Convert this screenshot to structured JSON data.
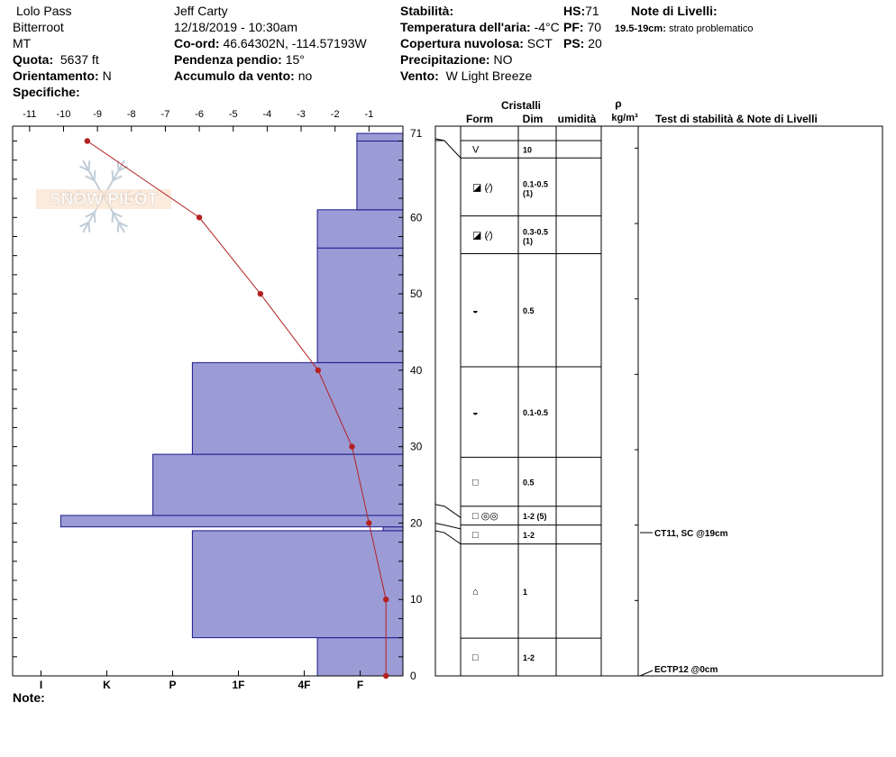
{
  "header": {
    "location": "Lolo Pass",
    "range": "Bitterroot",
    "state": "MT",
    "elevation_label": "Quota:",
    "elevation_value": "5637 ft",
    "aspect_label": "Orientamento:",
    "aspect_value": "N",
    "specifics_label": "Specifiche:",
    "observer": "Jeff Carty",
    "datetime": "12/18/2019 - 10:30am",
    "coords_label": "Co-ord:",
    "coords_value": "46.64302N, -114.57193W",
    "slope_label": "Pendenza pendio:",
    "slope_value": "15°",
    "wind_loading_label": "Accumulo da vento:",
    "wind_loading_value": "no",
    "stability_label": "Stabilità:",
    "air_temp_label": "Temperatura dell'aria:",
    "air_temp_value": "-4°C",
    "cloud_label": "Copertura nuvolosa:",
    "cloud_value": "SCT",
    "precip_label": "Precipitazione:",
    "precip_value": "NO",
    "wind_label": "Vento:",
    "wind_value": "W Light Breeze",
    "hs_label": "HS:",
    "hs_value": "71",
    "pf_label": "PF:",
    "pf_value": "70",
    "ps_label": "PS:",
    "ps_value": "20",
    "layer_notes_label": "Note di Livelli:",
    "layer_note_range": "19.5-19cm:",
    "layer_note_text": "strato problematico"
  },
  "logo_text": "SNOW PILOT",
  "note_label": "Note:",
  "chart_data": {
    "type": "line",
    "temp_axis": {
      "ticks": [
        -11,
        -10,
        -9,
        -8,
        -7,
        -6,
        -5,
        -4,
        -3,
        -2,
        -1,
        0
      ],
      "range": [
        -11.5,
        0
      ]
    },
    "depth_axis": {
      "ticks": [
        0,
        10,
        20,
        30,
        40,
        50,
        60,
        71
      ],
      "range": [
        0,
        71
      ]
    },
    "hardness_axis": {
      "labels": [
        "I",
        "K",
        "P",
        "1F",
        "4F",
        "F"
      ]
    },
    "temperature_profile": {
      "depth": [
        70,
        60,
        50,
        40,
        30,
        20,
        10,
        0
      ],
      "temp": [
        -9.3,
        -6.0,
        -4.2,
        -2.5,
        -1.5,
        -1.0,
        -0.5,
        -0.5
      ]
    },
    "hardness_profile": [
      {
        "bottom": 0,
        "top": 5,
        "hardness": 1.3
      },
      {
        "bottom": 5,
        "top": 19,
        "hardness": 3.2
      },
      {
        "bottom": 19,
        "top": 19.5,
        "hardness": 0.3
      },
      {
        "bottom": 19.5,
        "top": 21,
        "hardness": 5.2
      },
      {
        "bottom": 21,
        "top": 29,
        "hardness": 3.8
      },
      {
        "bottom": 29,
        "top": 41,
        "hardness": 3.2
      },
      {
        "bottom": 41,
        "top": 56,
        "hardness": 1.3
      },
      {
        "bottom": 56,
        "top": 61,
        "hardness": 1.3
      },
      {
        "bottom": 61,
        "top": 70,
        "hardness": 0.7
      },
      {
        "bottom": 70,
        "top": 71,
        "hardness": 0.7
      }
    ]
  },
  "layer_table": {
    "header_crystals": "Cristalli",
    "header_form": "Form",
    "header_size": "Dim",
    "header_moisture": "umidità",
    "header_rho": "ρ",
    "header_density_unit": "kg/m³",
    "header_tests": "Test di stabilità & Note di Livelli",
    "layers": [
      {
        "top": 71,
        "bottom": 68.7,
        "form": "V",
        "size": "10"
      },
      {
        "top": 68.7,
        "bottom": 61,
        "form": "◪ (⁄)",
        "size": "0.1-0.5",
        "size2": "(1)"
      },
      {
        "top": 61,
        "bottom": 56,
        "form": "◪ (⁄)",
        "size": "0.3-0.5",
        "size2": "(1)"
      },
      {
        "top": 56,
        "bottom": 41,
        "form": "◒",
        "size": "0.5"
      },
      {
        "top": 41,
        "bottom": 29,
        "form": "◒",
        "size": "0.1-0.5"
      },
      {
        "top": 29,
        "bottom": 22.5,
        "form": "□",
        "size": "0.5"
      },
      {
        "top": 22.5,
        "bottom": 20,
        "form": "□ ◎◎",
        "size": "1-2 (5)"
      },
      {
        "top": 20,
        "bottom": 17.5,
        "form": "□",
        "size": "1-2"
      },
      {
        "top": 17.5,
        "bottom": 5,
        "form": "⌂",
        "size": "1"
      },
      {
        "top": 5,
        "bottom": 0,
        "form": "□",
        "size": "1-2"
      }
    ],
    "tests": [
      {
        "label": "CT11, SC @19cm",
        "depth": 19
      },
      {
        "label": "ECTP12 @0cm",
        "depth": 0
      }
    ]
  }
}
